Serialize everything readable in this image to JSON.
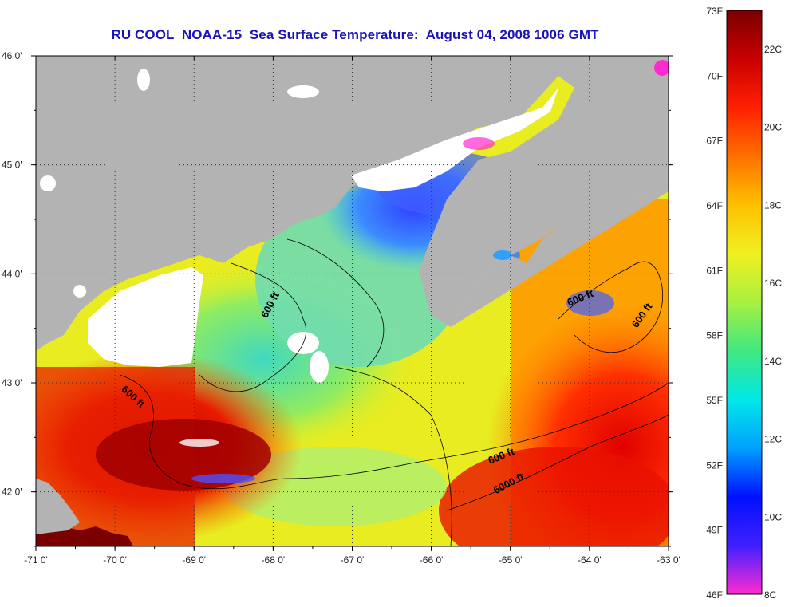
{
  "title": "RU COOL  NOAA-15  Sea Surface Temperature:  August 04, 2008 1006 GMT",
  "map": {
    "lon_range": [
      -71,
      -63
    ],
    "lat_range": [
      41.5,
      46
    ],
    "lon_ticks": [
      "-71 0'",
      "-70 0'",
      "-69 0'",
      "-68 0'",
      "-67 0'",
      "-66 0'",
      "-65 0'",
      "-64 0'",
      "-63 0'"
    ],
    "lat_ticks": [
      "46 0'",
      "45 0'",
      "44 0'",
      "43 0'",
      "42 0'"
    ],
    "contour_labels": [
      {
        "text": "600 ft",
        "lon": -68.0,
        "lat": 43.7,
        "angle": -62
      },
      {
        "text": "600 ft",
        "lon": -69.8,
        "lat": 42.85,
        "angle": 42
      },
      {
        "text": "600 ft",
        "lon": -64.1,
        "lat": 43.75,
        "angle": -22
      },
      {
        "text": "600 ft",
        "lon": -63.3,
        "lat": 43.6,
        "angle": -55
      },
      {
        "text": "600 ft",
        "lon": -65.1,
        "lat": 42.3,
        "angle": -22
      },
      {
        "text": "6000 ft",
        "lon": -65.0,
        "lat": 42.05,
        "angle": -28
      }
    ],
    "colors": {
      "land": "#b3b3b3",
      "cloud": "#ffffff",
      "grid": "#333333"
    }
  },
  "colorbar": {
    "f_labels": [
      "73F",
      "70F",
      "67F",
      "64F",
      "61F",
      "58F",
      "55F",
      "52F",
      "49F",
      "46F"
    ],
    "c_labels": [
      "22C",
      "20C",
      "18C",
      "16C",
      "14C",
      "12C",
      "10C",
      "8C"
    ],
    "stops": [
      "#ff2bd0",
      "#4020ff",
      "#0010ff",
      "#00a0ff",
      "#00e8e8",
      "#40e880",
      "#a8f040",
      "#f0f020",
      "#ffc000",
      "#ff7000",
      "#ff2000",
      "#c80000",
      "#7a0000"
    ]
  }
}
